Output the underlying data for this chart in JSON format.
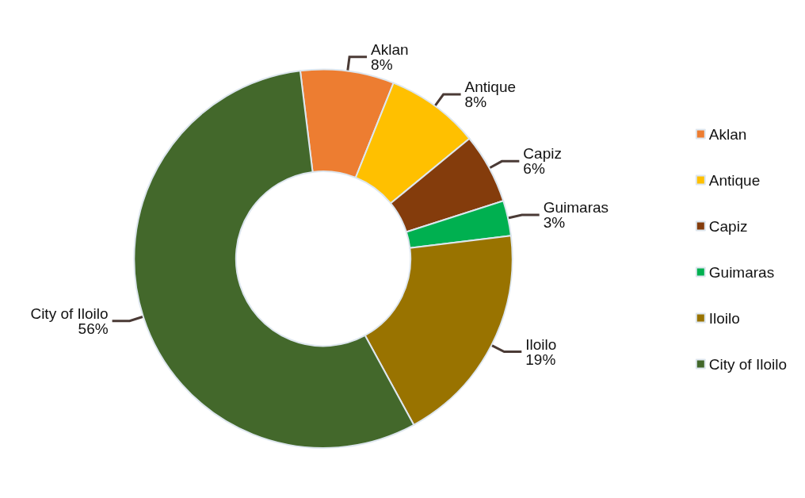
{
  "chart_data": {
    "type": "donut",
    "categories": [
      "Aklan",
      "Antique",
      "Capiz",
      "Guimaras",
      "Iloilo",
      "City of Iloilo"
    ],
    "values": [
      8,
      8,
      6,
      3,
      19,
      56
    ],
    "colors": [
      "#ed7d31",
      "#ffc000",
      "#843c0c",
      "#00b050",
      "#997300",
      "#43682b"
    ],
    "value_labels": [
      "8%",
      "8%",
      "6%",
      "3%",
      "19%",
      "56%"
    ],
    "legend": "right"
  }
}
